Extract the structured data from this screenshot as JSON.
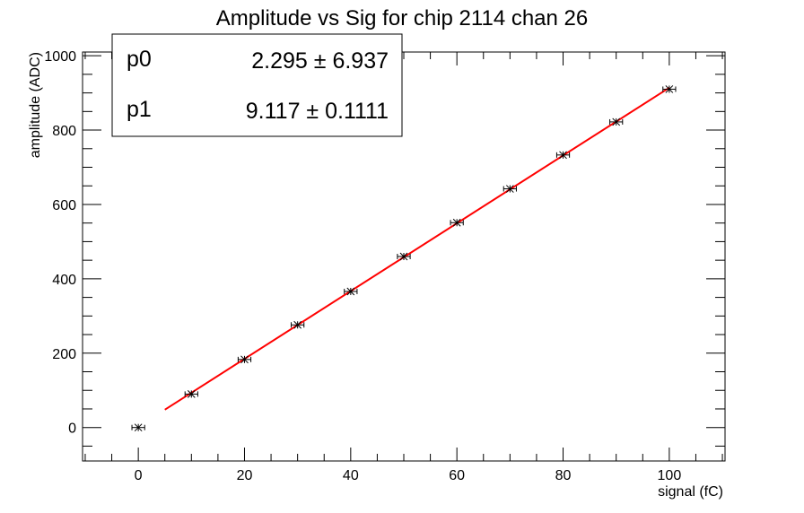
{
  "chart_data": {
    "type": "scatter",
    "title": "Amplitude vs Sig for chip 2114 chan 26",
    "xlabel": "signal (fC)",
    "ylabel": "amplitude (ADC)",
    "xlim": [
      -10.5,
      110.5
    ],
    "ylim": [
      -90,
      1010
    ],
    "xticks": [
      0,
      20,
      40,
      60,
      80,
      100
    ],
    "yticks": [
      0,
      200,
      400,
      600,
      800,
      1000
    ],
    "grid": false,
    "legend": "none",
    "series": [
      {
        "x": [
          0,
          10,
          20,
          30,
          40,
          50,
          60,
          70,
          80,
          90,
          100
        ],
        "y": [
          0,
          90,
          183,
          276,
          366,
          460,
          551,
          642,
          733,
          822,
          910
        ],
        "marker": "star",
        "color": "#000000",
        "x_error": 1.2
      }
    ],
    "fit": {
      "function": "p0 + p1*x",
      "x_range": [
        5,
        100
      ],
      "p0": 2.295,
      "p1": 9.117,
      "color": "#ff0000"
    }
  },
  "stats": [
    {
      "name": "p0",
      "value": "2.295 ± 6.937"
    },
    {
      "name": "p1",
      "value": "9.117 ± 0.1111"
    }
  ]
}
